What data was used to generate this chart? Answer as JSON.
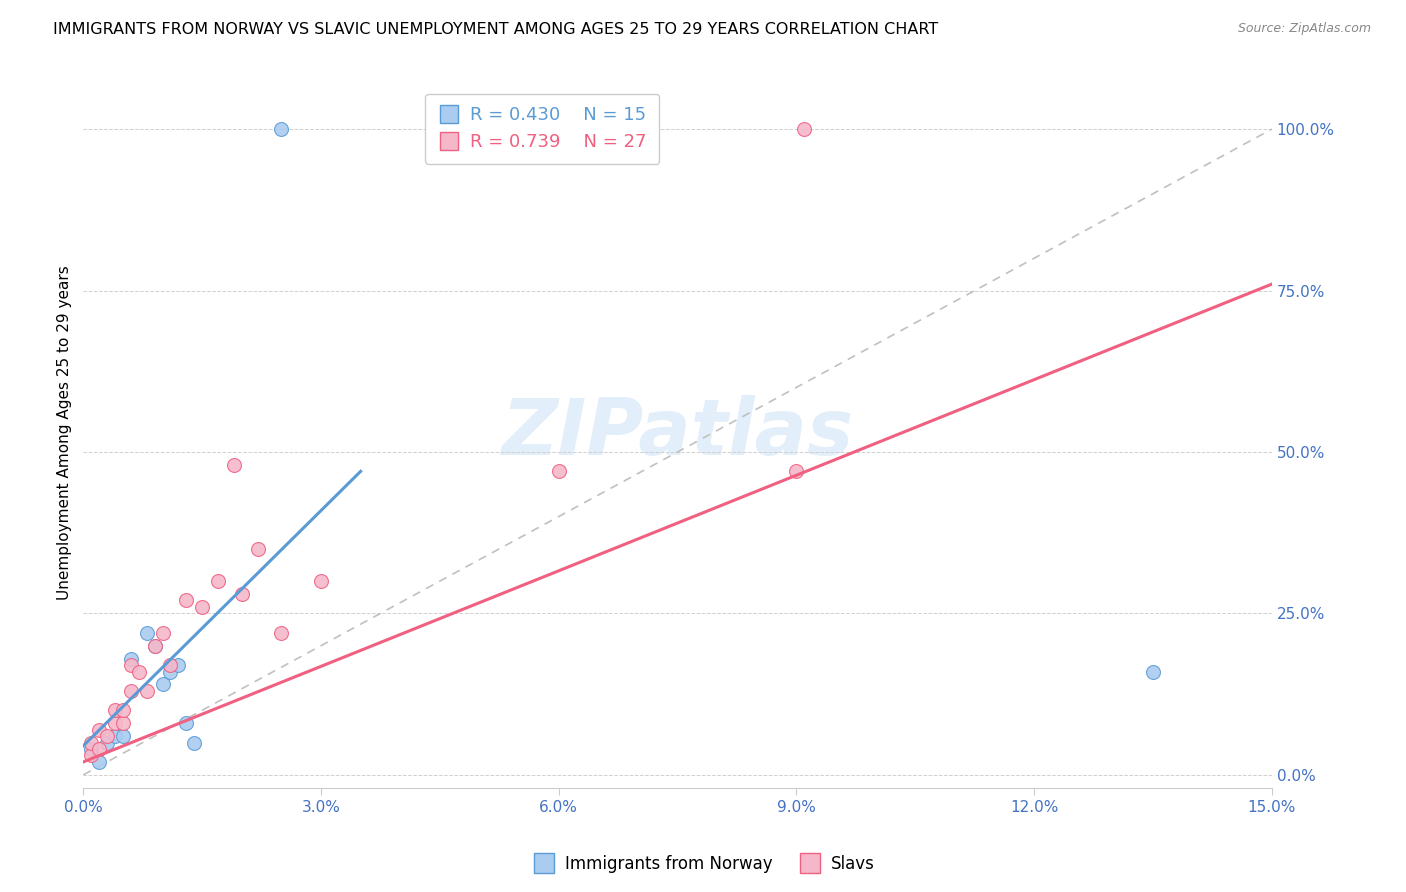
{
  "title": "IMMIGRANTS FROM NORWAY VS SLAVIC UNEMPLOYMENT AMONG AGES 25 TO 29 YEARS CORRELATION CHART",
  "source": "Source: ZipAtlas.com",
  "ylabel": "Unemployment Among Ages 25 to 29 years",
  "xlim": [
    0.0,
    0.15
  ],
  "ylim": [
    -0.02,
    1.08
  ],
  "yticks": [
    0.0,
    0.25,
    0.5,
    0.75,
    1.0
  ],
  "xticks": [
    0.0,
    0.03,
    0.06,
    0.09,
    0.12,
    0.15
  ],
  "norway_R": 0.43,
  "norway_N": 15,
  "slavic_R": 0.739,
  "slavic_N": 27,
  "norway_color": "#aaccf0",
  "slavic_color": "#f5b8cb",
  "norway_line_color": "#5b9bd5",
  "slavic_line_color": "#f06080",
  "ref_line_color": "#c0c0c0",
  "norway_scatter_x": [
    0.001,
    0.002,
    0.003,
    0.004,
    0.005,
    0.006,
    0.008,
    0.009,
    0.01,
    0.011,
    0.012,
    0.013,
    0.014,
    0.025,
    0.135
  ],
  "norway_scatter_y": [
    0.04,
    0.02,
    0.05,
    0.06,
    0.06,
    0.18,
    0.22,
    0.2,
    0.14,
    0.16,
    0.17,
    0.08,
    0.05,
    1.0,
    0.16
  ],
  "slavic_scatter_x": [
    0.001,
    0.001,
    0.002,
    0.002,
    0.003,
    0.004,
    0.004,
    0.005,
    0.005,
    0.006,
    0.006,
    0.007,
    0.008,
    0.009,
    0.01,
    0.011,
    0.013,
    0.015,
    0.017,
    0.019,
    0.02,
    0.022,
    0.025,
    0.03,
    0.06,
    0.09,
    0.091
  ],
  "slavic_scatter_y": [
    0.03,
    0.05,
    0.04,
    0.07,
    0.06,
    0.08,
    0.1,
    0.08,
    0.1,
    0.13,
    0.17,
    0.16,
    0.13,
    0.2,
    0.22,
    0.17,
    0.27,
    0.26,
    0.3,
    0.48,
    0.28,
    0.35,
    0.22,
    0.3,
    0.47,
    0.47,
    1.0
  ],
  "norway_line_x": [
    0.0,
    0.035
  ],
  "norway_line_y": [
    0.045,
    0.47
  ],
  "slavic_line_x": [
    0.0,
    0.15
  ],
  "slavic_line_y": [
    0.02,
    0.76
  ],
  "watermark_text": "ZIPatlas",
  "background_color": "#ffffff",
  "grid_color": "#d0d0d0",
  "title_fontsize": 11.5,
  "axis_label_fontsize": 11,
  "tick_label_color": "#4472c4",
  "tick_label_fontsize": 11,
  "legend_fontsize": 13,
  "marker_size": 100
}
